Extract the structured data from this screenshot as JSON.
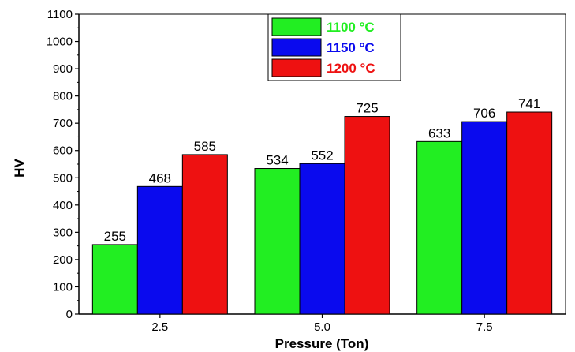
{
  "chart_data": {
    "type": "bar",
    "title": "",
    "xlabel": "Pressure (Ton)",
    "ylabel": "HV",
    "categories": [
      "2.5",
      "5.0",
      "7.5"
    ],
    "ylim": [
      0,
      1100
    ],
    "yticks": [
      "0",
      "100",
      "200",
      "300",
      "400",
      "500",
      "600",
      "700",
      "800",
      "900",
      "1000",
      "1100"
    ],
    "series": [
      {
        "name": "1100 °C",
        "color": "#22ee22",
        "values": [
          255,
          534,
          633
        ],
        "labels": [
          "255",
          "534",
          "633"
        ]
      },
      {
        "name": "1150 °C",
        "color": "#0a0aee",
        "values": [
          468,
          552,
          706
        ],
        "labels": [
          "468",
          "552",
          "706"
        ]
      },
      {
        "name": "1200 °C",
        "color": "#ee1111",
        "values": [
          585,
          725,
          741
        ],
        "labels": [
          "585",
          "725",
          "741"
        ]
      }
    ],
    "legend_position": "top-center",
    "grid": false
  }
}
